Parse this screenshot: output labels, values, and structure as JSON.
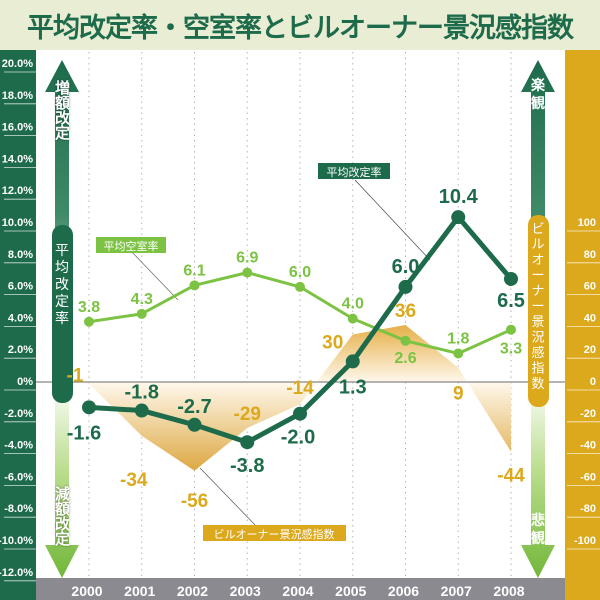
{
  "title": "平均改定率・空室率とビルオーナー景況感指数",
  "colors": {
    "rent": "#1e6b4c",
    "vacancy": "#7cc243",
    "index": "#dca91c",
    "left_axis_bg": "#1e6b4c",
    "right_axis_bg": "#dca91c",
    "year_bar_bg": "#8c8a91"
  },
  "left_arrow": {
    "top_label": "増額改定",
    "center_label": "平均改定率",
    "bottom_label": "減額改定"
  },
  "right_arrow": {
    "top_label": "楽観",
    "center_label": "ビルオーナー景況感指数",
    "bottom_label": "悲観"
  },
  "chart_data": {
    "type": "line",
    "categories": [
      "2000",
      "2001",
      "2002",
      "2003",
      "2004",
      "2005",
      "2006",
      "2007",
      "2008"
    ],
    "left_axis": {
      "ylim": [
        -12,
        20
      ],
      "ticks": [
        "20.0%",
        "18.0%",
        "16.0%",
        "14.0%",
        "12.0%",
        "10.0%",
        "8.0%",
        "6.0%",
        "4.0%",
        "2.0%",
        "0%",
        "-2.0%",
        "-4.0%",
        "-6.0%",
        "-8.0%",
        "-10.0%",
        "-12.0%"
      ]
    },
    "right_axis": {
      "ylim": [
        -100,
        100
      ],
      "ticks": [
        "100",
        "80",
        "60",
        "40",
        "20",
        "0",
        "-20",
        "-40",
        "-60",
        "-80",
        "-100"
      ]
    },
    "grid": "vertical dotted",
    "series": [
      {
        "name": "平均改定率",
        "axis": "left",
        "style": "line",
        "values": [
          -1.6,
          -1.8,
          -2.7,
          -3.8,
          -2.0,
          1.3,
          6.0,
          10.4,
          6.5
        ],
        "labels": [
          "-1.6",
          "-1.8",
          "-2.7",
          "-3.8",
          "-2.0",
          "1.3",
          "6.0",
          "10.4",
          "6.5"
        ]
      },
      {
        "name": "平均空室率",
        "axis": "left",
        "style": "line",
        "values": [
          3.8,
          4.3,
          6.1,
          6.9,
          6.0,
          4.0,
          2.6,
          1.8,
          3.3
        ],
        "labels": [
          "3.8",
          "4.3",
          "6.1",
          "6.9",
          "6.0",
          "4.0",
          "2.6",
          "1.8",
          "3.3"
        ]
      },
      {
        "name": "ビルオーナー景況感指数",
        "axis": "right",
        "style": "area",
        "values": [
          -1,
          -34,
          -56,
          -29,
          -14,
          30,
          36,
          9,
          -44
        ],
        "labels": [
          "-1",
          "-34",
          "-56",
          "-29",
          "-14",
          "30",
          "36",
          "9",
          "-44"
        ]
      }
    ]
  }
}
